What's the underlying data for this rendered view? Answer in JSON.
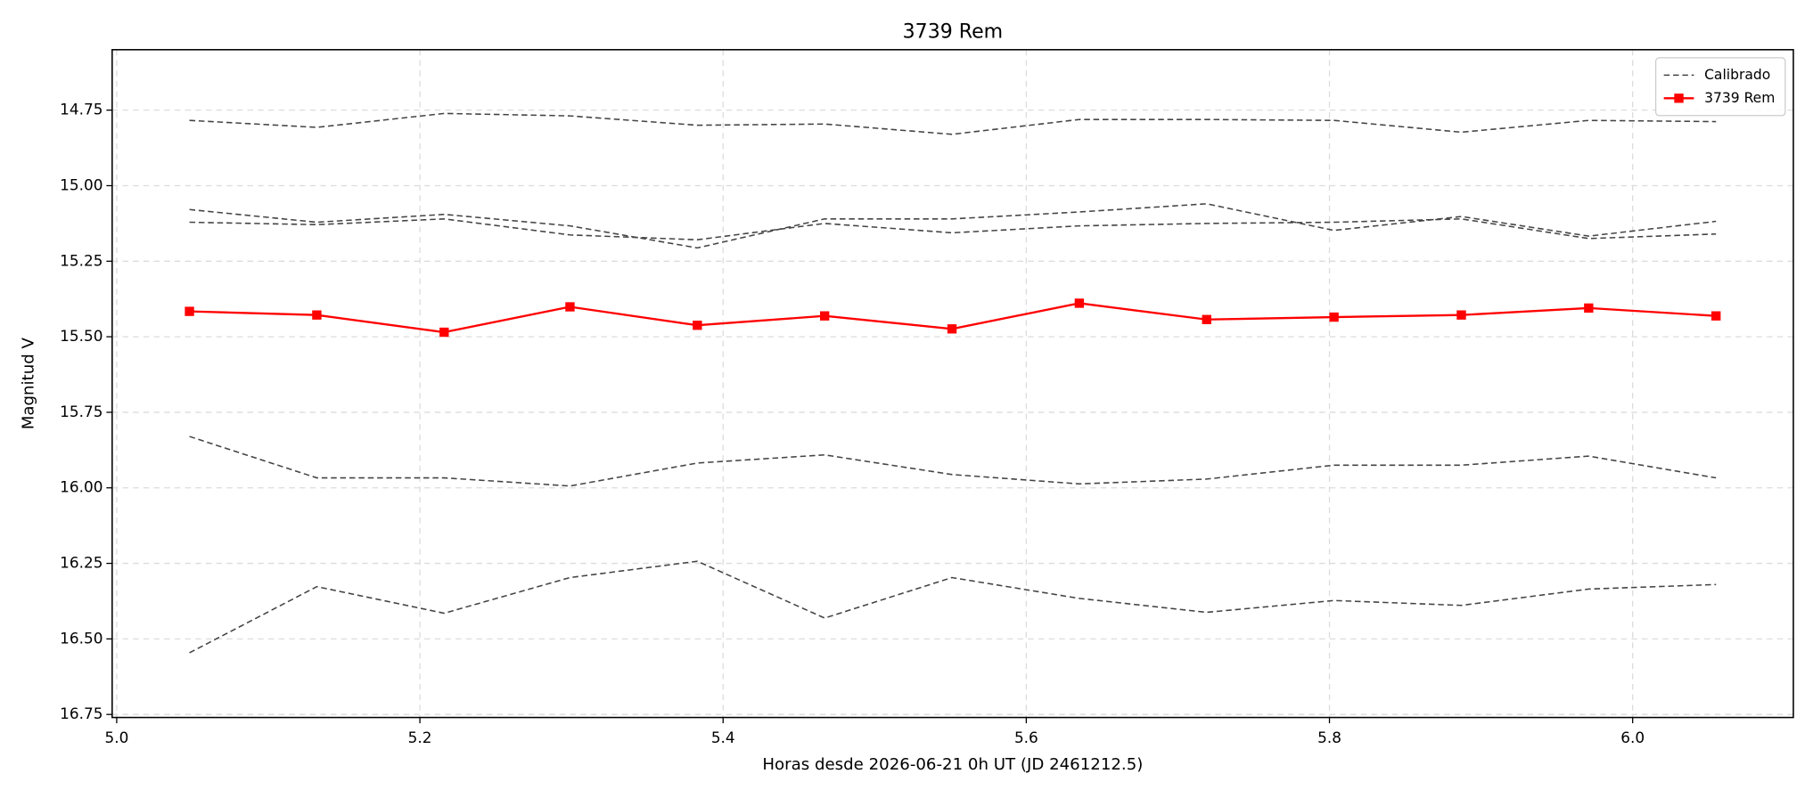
{
  "chart_data": {
    "type": "line",
    "title": "3739 Rem",
    "x_label": "Horas desde 2026-06-21 0h UT (JD 2461212.5)",
    "y_label": "Magnitud V",
    "x": [
      5.048,
      5.132,
      5.216,
      5.299,
      5.383,
      5.467,
      5.551,
      5.635,
      5.719,
      5.803,
      5.887,
      5.971,
      6.055
    ],
    "series": [
      {
        "name": "Calibrado",
        "color": "#444444",
        "style": "dashed",
        "values": [
          14.784,
          14.807,
          14.761,
          14.769,
          14.8,
          14.796,
          14.83,
          14.781,
          14.781,
          14.784,
          14.823,
          14.784,
          14.788
        ]
      },
      {
        "name": "Calibrado",
        "color": "#444444",
        "style": "dashed",
        "values": [
          15.079,
          15.121,
          15.095,
          15.133,
          15.206,
          15.11,
          15.11,
          15.087,
          15.06,
          15.148,
          15.102,
          15.167,
          15.118
        ]
      },
      {
        "name": "Calibrado",
        "color": "#444444",
        "style": "dashed",
        "values": [
          15.121,
          15.129,
          15.11,
          15.163,
          15.179,
          15.125,
          15.156,
          15.133,
          15.125,
          15.121,
          15.11,
          15.175,
          15.16
        ]
      },
      {
        "name": "Calibrado",
        "color": "#444444",
        "style": "dashed",
        "values": [
          15.83,
          15.967,
          15.967,
          15.994,
          15.918,
          15.891,
          15.956,
          15.987,
          15.971,
          15.925,
          15.925,
          15.895,
          15.967
        ]
      },
      {
        "name": "Calibrado",
        "color": "#444444",
        "style": "dashed",
        "values": [
          16.546,
          16.327,
          16.415,
          16.297,
          16.243,
          16.431,
          16.297,
          16.366,
          16.412,
          16.373,
          16.389,
          16.335,
          16.32
        ]
      },
      {
        "name": "3739 Rem",
        "color": "#ff0000",
        "style": "solid",
        "marker": "square",
        "values": [
          15.416,
          15.428,
          15.485,
          15.401,
          15.462,
          15.431,
          15.474,
          15.389,
          15.443,
          15.435,
          15.428,
          15.405,
          15.431
        ]
      }
    ],
    "xlim": [
      4.997,
      6.106
    ],
    "xticks": [
      {
        "value": 5.0,
        "label": "5.0"
      },
      5.2,
      5.4,
      5.6,
      5.8,
      {
        "value": 6.0,
        "label": "6.0"
      }
    ],
    "ylim": [
      14.55,
      16.76
    ],
    "y_inverted": true,
    "yticks": [
      14.75,
      {
        "value": 15.0,
        "label": "15.00"
      },
      15.25,
      {
        "value": 15.5,
        "label": "15.50"
      },
      15.75,
      {
        "value": 16.0,
        "label": "16.00"
      },
      16.25,
      {
        "value": 16.5,
        "label": "16.50"
      },
      16.75
    ],
    "grid": true,
    "legend": "upper right"
  }
}
